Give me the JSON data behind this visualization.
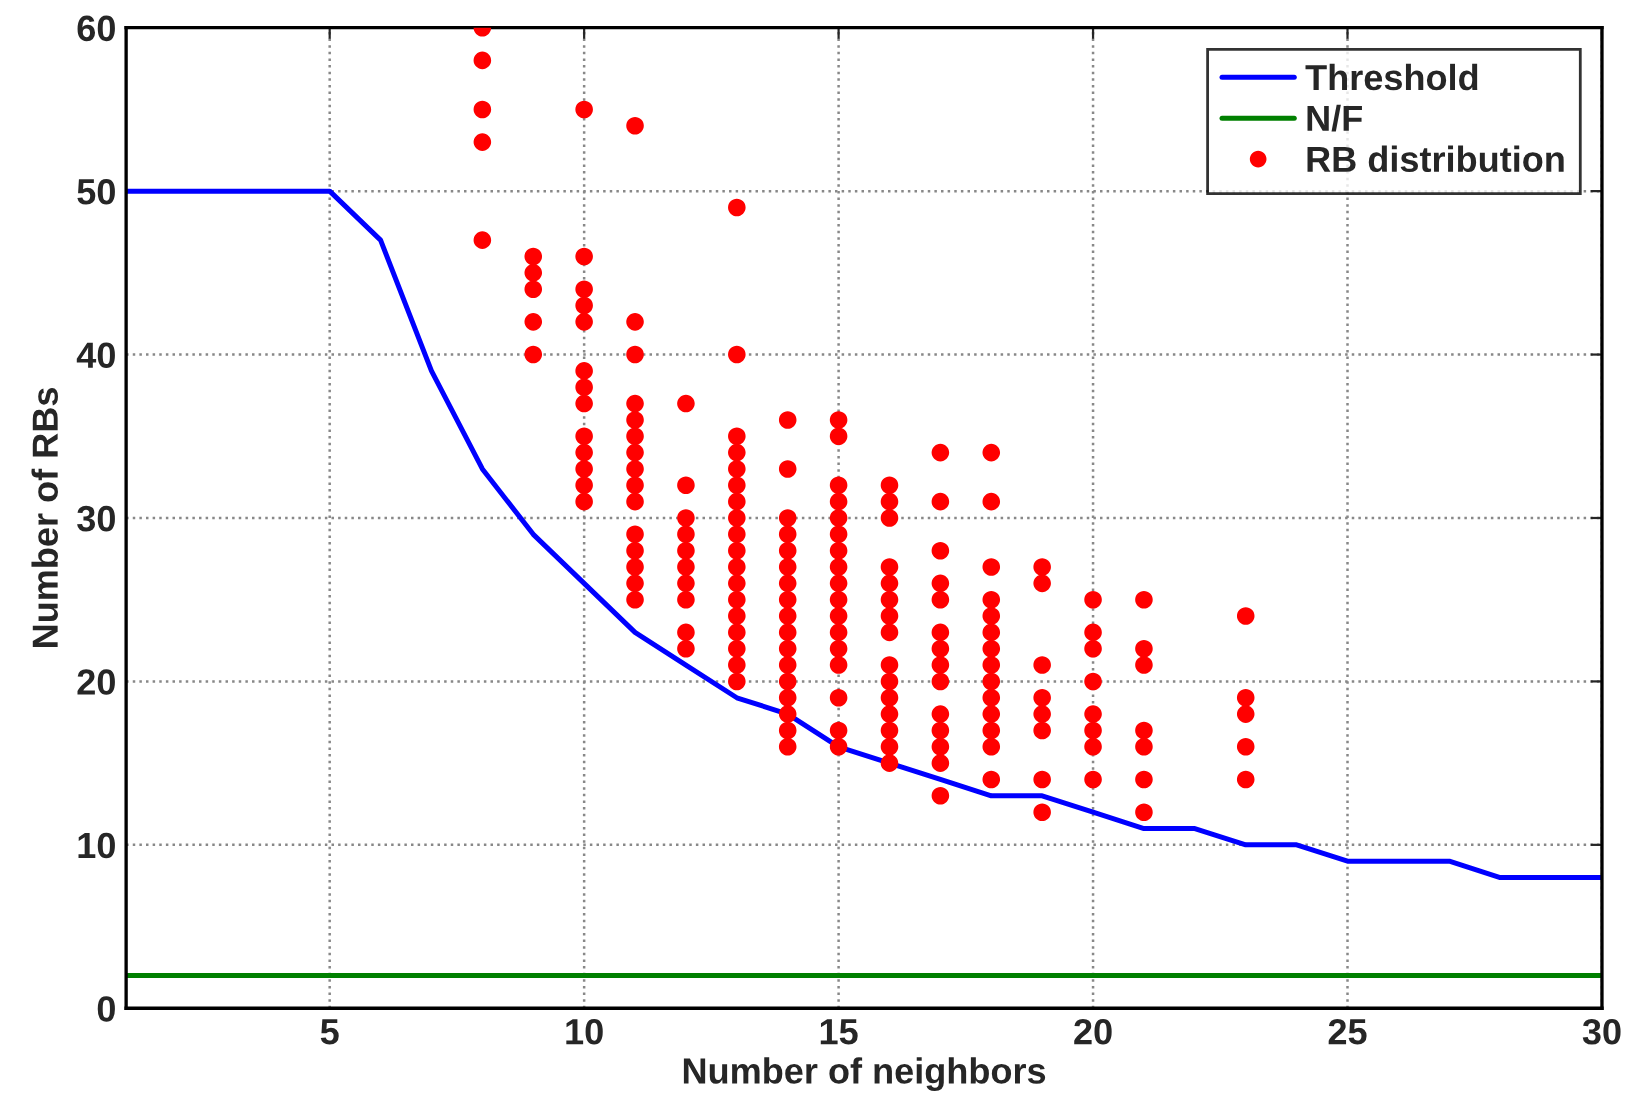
{
  "chart_data": {
    "type": "line",
    "xlabel": "Number of neighbors",
    "ylabel": "Number of RBs",
    "xlim": [
      1,
      30
    ],
    "ylim": [
      0,
      60
    ],
    "xticks": [
      5,
      10,
      15,
      20,
      25,
      30
    ],
    "yticks": [
      0,
      10,
      20,
      30,
      40,
      50,
      60
    ],
    "grid": true,
    "legend": "top right",
    "series": [
      {
        "name": "Threshold",
        "color": "#0000ff",
        "line_style": "solid",
        "marker": "none",
        "x": [
          1,
          2,
          3,
          4,
          5,
          6,
          7,
          8,
          9,
          10,
          11,
          12,
          13,
          14,
          15,
          16,
          17,
          18,
          19,
          20,
          21,
          22,
          23,
          24,
          25,
          26,
          27,
          28,
          29,
          30
        ],
        "values": [
          50,
          50,
          50,
          50,
          50,
          47,
          39,
          33,
          29,
          26,
          23,
          21,
          19,
          18,
          16,
          15,
          14,
          13,
          13,
          12,
          11,
          11,
          10,
          10,
          9,
          9,
          9,
          8,
          8,
          8
        ]
      },
      {
        "name": "N/F",
        "color": "#008000",
        "line_style": "solid",
        "marker": "none",
        "x": [
          1,
          30
        ],
        "values": [
          2,
          2
        ]
      },
      {
        "name": "RB distribution",
        "type": "scatter",
        "color": "#ff0000",
        "marker": "circle",
        "x": [
          8,
          8,
          8,
          8,
          8,
          9,
          9,
          9,
          9,
          9,
          10,
          10,
          10,
          10,
          10,
          10,
          10,
          10,
          10,
          10,
          10,
          10,
          10,
          11,
          11,
          11,
          11,
          11,
          11,
          11,
          11,
          11,
          11,
          11,
          11,
          11,
          11,
          11,
          12,
          12,
          12,
          12,
          12,
          12,
          12,
          12,
          12,
          12,
          13,
          13,
          13,
          13,
          13,
          13,
          13,
          13,
          13,
          13,
          13,
          13,
          13,
          13,
          13,
          13,
          13,
          13,
          14,
          14,
          14,
          14,
          14,
          14,
          14,
          14,
          14,
          14,
          14,
          14,
          14,
          14,
          14,
          14,
          14,
          15,
          15,
          15,
          15,
          15,
          15,
          15,
          15,
          15,
          15,
          15,
          15,
          15,
          15,
          15,
          15,
          15,
          16,
          16,
          16,
          16,
          16,
          16,
          16,
          16,
          16,
          16,
          16,
          16,
          16,
          16,
          16,
          17,
          17,
          17,
          17,
          17,
          17,
          17,
          17,
          17,
          17,
          17,
          17,
          17,
          17,
          18,
          18,
          18,
          18,
          18,
          18,
          18,
          18,
          18,
          18,
          18,
          18,
          18,
          18,
          19,
          19,
          19,
          19,
          19,
          19,
          19,
          19,
          20,
          20,
          20,
          20,
          20,
          20,
          20,
          20,
          21,
          21,
          21,
          21,
          21,
          21,
          21,
          23,
          23,
          23,
          23,
          23
        ],
        "values": [
          60,
          58,
          55,
          53,
          47,
          46,
          45,
          44,
          42,
          40,
          55,
          46,
          44,
          43,
          42,
          39,
          38,
          37,
          35,
          34,
          33,
          32,
          31,
          54,
          42,
          40,
          37,
          36,
          35,
          34,
          33,
          32,
          31,
          29,
          28,
          27,
          26,
          25,
          37,
          32,
          30,
          29,
          28,
          27,
          26,
          25,
          23,
          22,
          49,
          40,
          35,
          34,
          33,
          32,
          31,
          30,
          29,
          28,
          27,
          26,
          25,
          24,
          23,
          22,
          21,
          20,
          36,
          33,
          30,
          29,
          28,
          27,
          26,
          25,
          24,
          23,
          22,
          21,
          20,
          19,
          18,
          17,
          16,
          36,
          35,
          32,
          31,
          30,
          29,
          28,
          27,
          26,
          25,
          24,
          23,
          22,
          21,
          19,
          17,
          16,
          32,
          31,
          30,
          27,
          26,
          25,
          24,
          23,
          21,
          20,
          19,
          18,
          17,
          16,
          15,
          34,
          31,
          28,
          26,
          25,
          23,
          22,
          21,
          20,
          18,
          17,
          16,
          15,
          13,
          34,
          31,
          27,
          25,
          24,
          23,
          22,
          21,
          20,
          19,
          18,
          17,
          16,
          14,
          27,
          26,
          21,
          19,
          18,
          17,
          14,
          12,
          25,
          23,
          22,
          20,
          18,
          17,
          16,
          14,
          25,
          22,
          21,
          17,
          16,
          14,
          12,
          24,
          19,
          18,
          16,
          14
        ]
      }
    ]
  }
}
